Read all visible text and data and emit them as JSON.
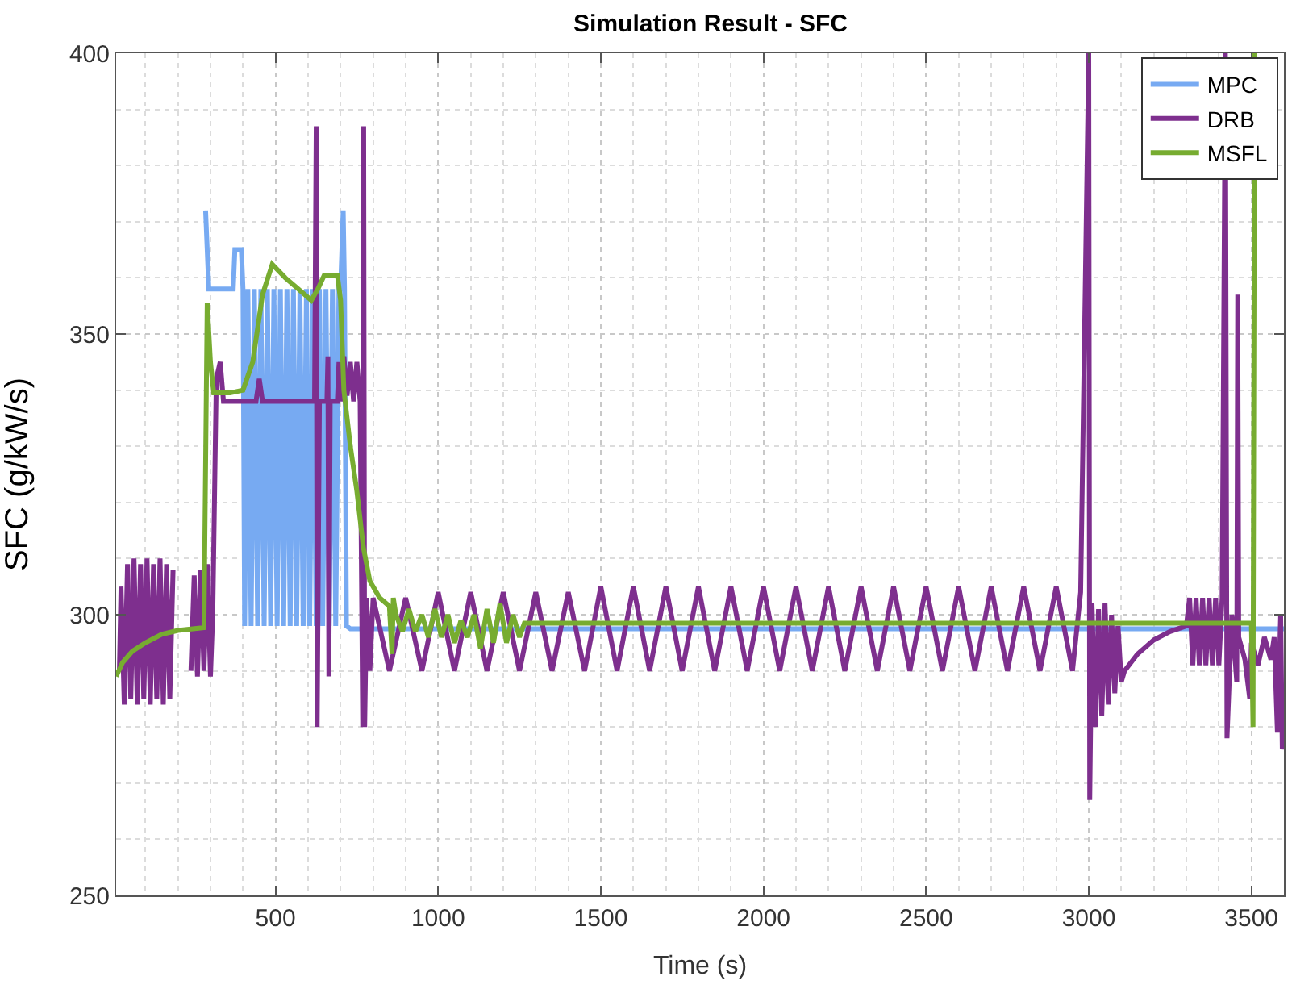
{
  "chart_data": {
    "type": "line",
    "title": "Simulation Result - SFC",
    "xlabel": "Time (s)",
    "ylabel": "SFC (g/kW/s)",
    "xlim": [
      10,
      3600
    ],
    "xticks": [
      500,
      1000,
      1500,
      2000,
      2500,
      3000,
      3500
    ],
    "ylim": [
      250,
      400
    ],
    "yticks": [
      250,
      300,
      350,
      400
    ],
    "grid": true,
    "legend": "top right",
    "line_style": "solid",
    "marker": "none",
    "series": [
      {
        "name": "MPC",
        "color": "#77aaf2",
        "x": [
          285,
          295,
          370,
          375,
          395,
          400,
          405,
          415,
          425,
          435,
          445,
          455,
          465,
          475,
          485,
          495,
          505,
          515,
          525,
          535,
          545,
          555,
          565,
          575,
          585,
          595,
          605,
          615,
          625,
          635,
          645,
          655,
          665,
          675,
          685,
          695,
          700,
          708,
          712,
          718,
          730,
          3600
        ],
        "values": [
          372,
          358,
          358,
          365,
          365,
          358,
          298,
          358,
          298,
          358,
          298,
          358,
          298,
          358,
          298,
          358,
          298,
          358,
          298,
          358,
          298,
          358,
          298,
          358,
          298,
          358,
          298,
          358,
          298,
          358,
          298,
          358,
          298,
          358,
          298,
          358,
          358,
          372,
          358,
          298,
          297.5,
          297.5
        ]
      },
      {
        "name": "DRB",
        "color": "#7e2f8e",
        "x": [
          20,
          25,
          35,
          45,
          55,
          65,
          75,
          85,
          95,
          105,
          115,
          125,
          135,
          145,
          155,
          165,
          175,
          185,
          210,
          240,
          250,
          260,
          270,
          280,
          290,
          300,
          307,
          318,
          330,
          340,
          420,
          440,
          450,
          460,
          620,
          625,
          628,
          635,
          658,
          661,
          664,
          668,
          690,
          695,
          700,
          710,
          720,
          730,
          740,
          750,
          760,
          768,
          771,
          774,
          780,
          790,
          800,
          850,
          900,
          950,
          1000,
          1050,
          1100,
          1150,
          1200,
          1250,
          1300,
          1350,
          1400,
          1450,
          1500,
          1550,
          1600,
          1650,
          1700,
          1750,
          1800,
          1850,
          1900,
          1950,
          2000,
          2050,
          2100,
          2150,
          2200,
          2250,
          2300,
          2350,
          2400,
          2450,
          2500,
          2550,
          2600,
          2650,
          2700,
          2750,
          2800,
          2850,
          2900,
          2950,
          2975,
          3000,
          3003,
          3010,
          3020,
          3030,
          3040,
          3050,
          3060,
          3070,
          3080,
          3090,
          3100,
          3110,
          3150,
          3200,
          3250,
          3300,
          3310,
          3320,
          3330,
          3340,
          3350,
          3360,
          3370,
          3380,
          3390,
          3400,
          3410,
          3420,
          3425,
          3440,
          3455,
          3458,
          3461,
          3480,
          3495,
          3500,
          3520,
          3540,
          3560,
          3570,
          3580,
          3590,
          3595,
          3600
        ],
        "values": [
          290,
          305,
          284,
          309,
          285,
          310,
          284,
          309,
          285,
          310,
          284,
          309,
          285,
          310,
          284,
          309,
          285,
          308,
          null,
          290,
          307,
          289,
          308,
          290,
          309,
          289,
          300,
          342,
          345,
          338,
          338,
          338,
          342,
          338,
          338,
          387,
          280,
          338,
          338,
          346,
          289,
          338,
          338,
          345,
          338,
          346,
          339,
          345,
          338,
          345,
          338,
          280,
          387,
          280,
          303,
          290,
          303,
          290,
          303,
          290,
          304,
          290,
          304,
          290,
          304,
          290,
          304,
          290,
          304,
          290,
          305,
          290,
          305,
          290,
          305,
          290,
          305,
          290,
          305,
          290,
          305,
          290,
          305,
          290,
          305,
          290,
          305,
          290,
          305,
          290,
          305,
          290,
          305,
          290,
          305,
          290,
          305,
          290,
          305,
          290,
          304,
          400,
          267,
          302,
          280,
          301,
          282,
          302,
          284,
          300,
          286,
          298,
          288,
          290,
          293,
          295.5,
          297,
          298,
          303,
          291,
          303,
          291,
          303,
          291,
          303,
          291,
          303,
          291,
          303,
          400,
          278,
          300,
          288,
          357,
          296,
          292,
          285,
          295,
          291,
          296,
          292,
          296,
          279,
          300,
          276,
          280
        ]
      },
      {
        "name": "MSFL",
        "color": "#77ac30",
        "x": [
          10,
          30,
          60,
          100,
          150,
          200,
          280,
          290,
          300,
          310,
          360,
          400,
          430,
          460,
          490,
          530,
          570,
          610,
          630,
          650,
          690,
          700,
          710,
          730,
          750,
          770,
          790,
          820,
          850,
          858,
          862,
          870,
          890,
          910,
          930,
          950,
          970,
          990,
          1010,
          1030,
          1050,
          1070,
          1090,
          1110,
          1130,
          1150,
          1170,
          1190,
          1210,
          1230,
          1250,
          1265,
          3500,
          3505,
          3510
        ],
        "values": [
          289,
          291.5,
          293.5,
          295,
          296.5,
          297.2,
          297.7,
          355.5,
          345,
          339.5,
          339.5,
          340,
          345,
          357,
          362.4,
          360,
          358,
          356,
          358,
          360.5,
          360.5,
          356,
          340,
          330,
          322,
          312,
          306,
          303,
          301.5,
          293,
          303,
          300,
          297,
          301,
          297,
          300,
          296,
          301,
          296,
          300,
          295,
          299,
          296,
          300,
          294,
          301,
          295,
          302,
          295,
          300,
          296,
          298.5,
          298.5,
          280,
          400
        ]
      }
    ]
  }
}
